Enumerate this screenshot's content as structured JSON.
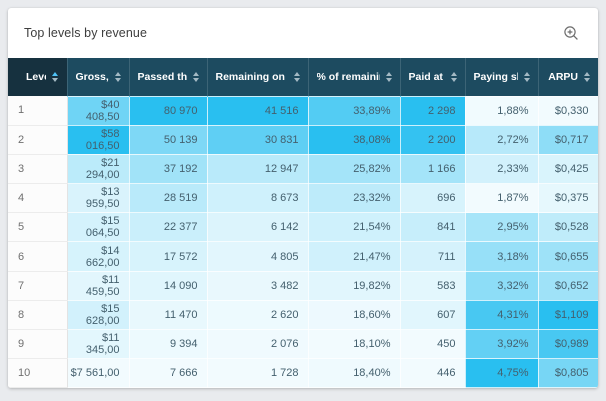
{
  "card": {
    "title": "Top levels by revenue",
    "zoom_icon": "magnifier-plus-icon"
  },
  "table": {
    "sorted_column": "Level",
    "sorted_direction": "asc",
    "columns": [
      {
        "key": "level",
        "label": "Level"
      },
      {
        "key": "gross",
        "label": "Gross, $"
      },
      {
        "key": "passed-the-level",
        "label": "Passed the level"
      },
      {
        "key": "remaining-on-the-level",
        "label": "Remaining on the level"
      },
      {
        "key": "percent-of-remaining-users",
        "label": "% of remaining users"
      },
      {
        "key": "paid-at-level",
        "label": "Paid at level"
      },
      {
        "key": "paying-share",
        "label": "Paying share, %"
      },
      {
        "key": "arpu",
        "label": "ARPU"
      }
    ],
    "rows": [
      [
        "1",
        "$40 408,50",
        "80 970",
        "41 516",
        "33,89%",
        "2 298",
        "1,88%",
        "$0,330"
      ],
      [
        "2",
        "$58 016,50",
        "50 139",
        "30 831",
        "38,08%",
        "2 200",
        "2,72%",
        "$0,717"
      ],
      [
        "3",
        "$21 294,00",
        "37 192",
        "12 947",
        "25,82%",
        "1 166",
        "2,33%",
        "$0,425"
      ],
      [
        "4",
        "$13 959,50",
        "28 519",
        "8 673",
        "23,32%",
        "696",
        "1,87%",
        "$0,375"
      ],
      [
        "5",
        "$15 064,50",
        "22 377",
        "6 142",
        "21,54%",
        "841",
        "2,95%",
        "$0,528"
      ],
      [
        "6",
        "$14 662,00",
        "17 572",
        "4 805",
        "21,47%",
        "711",
        "3,18%",
        "$0,655"
      ],
      [
        "7",
        "$11 459,50",
        "14 090",
        "3 482",
        "19,82%",
        "583",
        "3,32%",
        "$0,652"
      ],
      [
        "8",
        "$15 628,00",
        "11 470",
        "2 620",
        "18,60%",
        "607",
        "4,31%",
        "$1,109"
      ],
      [
        "9",
        "$11 345,00",
        "9 394",
        "2 076",
        "18,10%",
        "450",
        "3,92%",
        "$0,989"
      ],
      [
        "10",
        "$7 561,00",
        "7 666",
        "1 728",
        "18,40%",
        "446",
        "4,75%",
        "$0,805"
      ]
    ],
    "heatmap": {
      "min_color": "#f2fbfe",
      "max_color": "#29bff0"
    }
  }
}
